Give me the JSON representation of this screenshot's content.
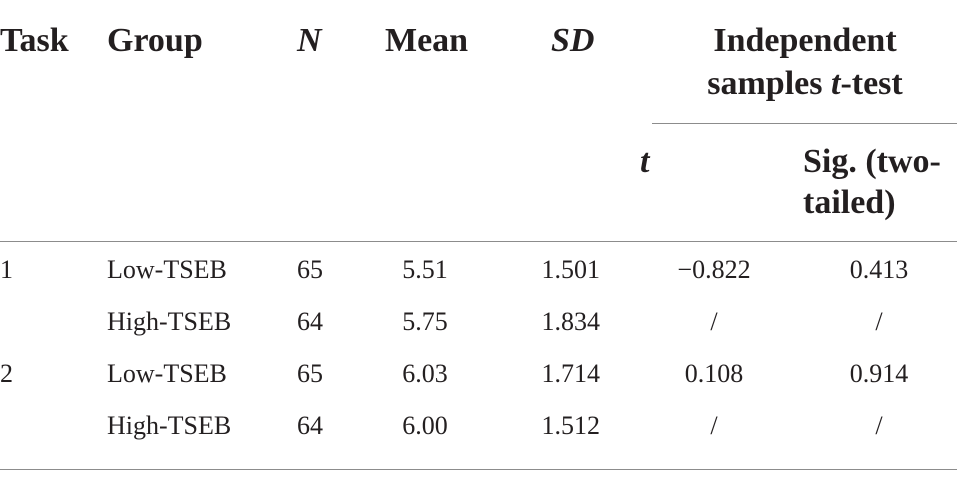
{
  "headers": {
    "task": "Task",
    "group": "Group",
    "n": "N",
    "mean": "Mean",
    "sd": "SD",
    "ttest_line1": "Independent",
    "ttest_line2_pre": "samples ",
    "ttest_line2_t": "t",
    "ttest_line2_post": "-test",
    "t": "t",
    "sig_line1": "Sig. (two-",
    "sig_line2": "tailed)"
  },
  "rows": [
    {
      "task": "1",
      "group": "Low-TSEB",
      "n": "65",
      "mean": "5.51",
      "sd": "1.501",
      "t": "−0.822",
      "sig": "0.413"
    },
    {
      "task": "",
      "group": "High-TSEB",
      "n": "64",
      "mean": "5.75",
      "sd": "1.834",
      "t": "/",
      "sig": "/"
    },
    {
      "task": "2",
      "group": "Low-TSEB",
      "n": "65",
      "mean": "6.03",
      "sd": "1.714",
      "t": "0.108",
      "sig": "0.914"
    },
    {
      "task": "",
      "group": "High-TSEB",
      "n": "64",
      "mean": "6.00",
      "sd": "1.512",
      "t": "/",
      "sig": "/"
    }
  ]
}
